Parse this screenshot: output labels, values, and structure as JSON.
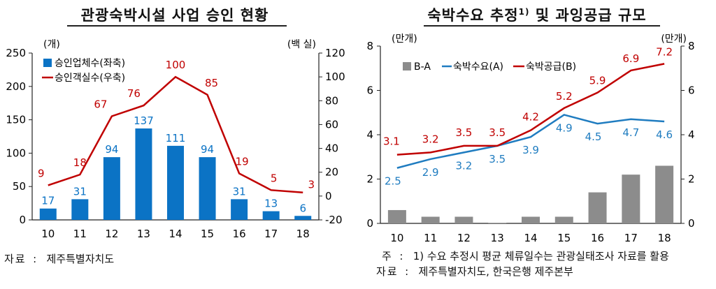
{
  "left": {
    "title": "관광숙박시설 사업 승인 현황",
    "source_label": "자료",
    "source_text": "제주특별자치도"
  },
  "right": {
    "title": "숙박수요 추정",
    "title_sup": "1)",
    "title_tail": " 및 과잉공급 규모",
    "note_label": "주",
    "note_text": "1) 수요 추정시 평균 체류일수는 관광실태조사 자료를 활용",
    "source_label": "자료",
    "source_text": "제주특별자치도, 한국은행 제주본부"
  },
  "chart_data": [
    {
      "type": "bar",
      "title": "관광숙박시설 사업 승인 현황",
      "categories": [
        "10",
        "11",
        "12",
        "13",
        "14",
        "15",
        "16",
        "17",
        "18"
      ],
      "y_left_unit": "(개)",
      "y_right_unit": "(백 실)",
      "y_left_lim": [
        0,
        250
      ],
      "y_left_ticks": [
        0,
        50,
        100,
        150,
        200,
        250
      ],
      "y_right_lim": [
        -20,
        120
      ],
      "y_right_ticks": [
        -20,
        0,
        20,
        40,
        60,
        80,
        100,
        120
      ],
      "series": [
        {
          "name": "승인업체수(좌축)",
          "kind": "bar",
          "axis": "left",
          "color": "#0b73c5",
          "values": [
            17,
            31,
            94,
            137,
            111,
            94,
            31,
            13,
            6
          ]
        },
        {
          "name": "승인객실수(우축)",
          "kind": "line",
          "axis": "right",
          "color": "#c00000",
          "values": [
            9,
            18,
            67,
            76,
            100,
            85,
            19,
            5,
            3
          ]
        }
      ],
      "legend_position": "top-left",
      "grid": false
    },
    {
      "type": "line",
      "title": "숙박수요 추정 및 과잉공급 규모",
      "categories": [
        "10",
        "11",
        "12",
        "13",
        "14",
        "15",
        "16",
        "17",
        "18"
      ],
      "y_left_unit": "(만개)",
      "y_right_unit": "(만개)",
      "ylim": [
        0,
        8
      ],
      "y_ticks": [
        0,
        2,
        4,
        6,
        8
      ],
      "series": [
        {
          "name": "B-A",
          "kind": "bar",
          "color": "#8c8c8c",
          "values": [
            0.6,
            0.3,
            0.3,
            0.0,
            0.3,
            0.3,
            1.4,
            2.2,
            2.6
          ]
        },
        {
          "name": "숙박수요(A)",
          "kind": "line",
          "color": "#1f7cc0",
          "values": [
            2.5,
            2.9,
            3.2,
            3.5,
            3.9,
            4.9,
            4.5,
            4.7,
            4.6
          ]
        },
        {
          "name": "숙박공급(B)",
          "kind": "line",
          "color": "#c00000",
          "values": [
            3.1,
            3.2,
            3.5,
            3.5,
            4.2,
            5.2,
            5.9,
            6.9,
            7.2
          ]
        }
      ],
      "legend_position": "top-left",
      "grid": false
    }
  ]
}
